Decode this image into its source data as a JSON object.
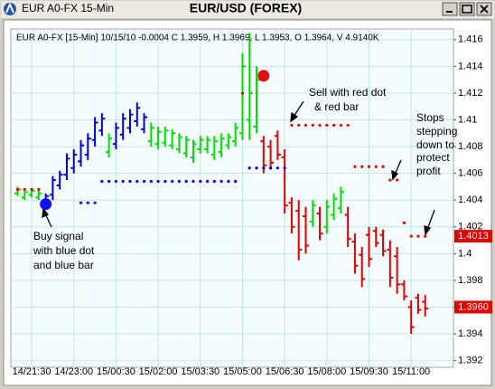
{
  "window": {
    "title": "EUR A0-FX 15-Min"
  },
  "chart_data": {
    "type": "ohlc",
    "title": "EUR/USD (FOREX)",
    "subtitle": "EUR A0-FX [15-Min] 10/15/10  -0.0004 C 1.3959, H 1.3969, L 1.3953, O 1.3964, V 4.9140K",
    "categories": [
      null,
      null,
      "14/21:30",
      null,
      null,
      null,
      null,
      null,
      "14/23:00",
      null,
      null,
      null,
      null,
      null,
      "15/00:30",
      null,
      null,
      null,
      null,
      null,
      "15/02:00",
      null,
      null,
      null,
      null,
      null,
      "15/03:30",
      null,
      null,
      null,
      null,
      null,
      "15/05:00",
      null,
      null,
      null,
      null,
      null,
      "15/06:30",
      null,
      null,
      null,
      null,
      null,
      "15/08:00",
      null,
      null,
      null,
      null,
      null,
      "15/09:30",
      null,
      null,
      null,
      null,
      null,
      "15/11:00",
      null,
      null
    ],
    "open": [
      1.4045,
      1.4042,
      1.4044,
      1.4042,
      1.4037,
      1.4044,
      1.4051,
      1.4059,
      1.4064,
      1.4069,
      1.4074,
      1.4085,
      1.4092,
      1.4076,
      1.4082,
      1.4089,
      1.4094,
      1.4099,
      1.4093,
      1.4084,
      1.4082,
      1.4083,
      1.4081,
      1.4078,
      1.4075,
      1.4072,
      1.4078,
      1.4078,
      1.4074,
      1.4076,
      1.4081,
      1.4084,
      1.409,
      1.41,
      1.4095,
      1.4084,
      1.408,
      1.4088,
      1.4072,
      1.4038,
      1.4032,
      1.4028,
      1.4024,
      1.403,
      1.402,
      1.4029,
      1.4034,
      1.4029,
      1.4009,
      1.3999,
      1.4014,
      1.4017,
      1.4014,
      1.4003,
      1.3998,
      1.3977,
      1.396,
      1.3967,
      1.3964
    ],
    "high": [
      1.405,
      1.4048,
      1.4049,
      1.4047,
      1.4045,
      1.4058,
      1.4062,
      1.4075,
      1.4078,
      1.4085,
      1.409,
      1.4102,
      1.4105,
      1.409,
      1.4098,
      1.4105,
      1.4108,
      1.4113,
      1.4105,
      1.4098,
      1.4095,
      1.4095,
      1.4093,
      1.409,
      1.4088,
      1.4085,
      1.4088,
      1.4088,
      1.4088,
      1.409,
      1.409,
      1.4098,
      1.415,
      1.4165,
      1.414,
      1.4088,
      1.4085,
      1.4092,
      1.4078,
      1.4042,
      1.404,
      1.4035,
      1.404,
      1.4035,
      1.404,
      1.4045,
      1.405,
      1.4035,
      1.4015,
      1.4005,
      1.402,
      1.402,
      1.4018,
      1.401,
      1.4005,
      1.398,
      1.3965,
      1.397,
      1.3969
    ],
    "low": [
      1.4043,
      1.404,
      1.4042,
      1.404,
      1.4035,
      1.404,
      1.4048,
      1.4055,
      1.406,
      1.4065,
      1.407,
      1.408,
      1.4088,
      1.4072,
      1.4078,
      1.4085,
      1.409,
      1.4095,
      1.409,
      1.408,
      1.4078,
      1.408,
      1.4078,
      1.4075,
      1.4072,
      1.4068,
      1.4075,
      1.4075,
      1.407,
      1.4072,
      1.4078,
      1.408,
      1.4085,
      1.4085,
      1.409,
      1.406,
      1.4063,
      1.407,
      1.403,
      1.4015,
      1.3995,
      1.4,
      1.402,
      1.401,
      1.4015,
      1.4025,
      1.403,
      1.4005,
      1.3985,
      1.3975,
      1.399,
      1.4005,
      1.3998,
      1.3975,
      1.397,
      1.3965,
      1.394,
      1.3955,
      1.3953
    ],
    "close": [
      1.4048,
      1.4046,
      1.4047,
      1.4045,
      1.4043,
      1.4055,
      1.4059,
      1.4071,
      1.4074,
      1.4081,
      1.4086,
      1.4098,
      1.4101,
      1.4086,
      1.4094,
      1.4101,
      1.4104,
      1.4109,
      1.4102,
      1.4094,
      1.4091,
      1.4092,
      1.409,
      1.4087,
      1.4085,
      1.4082,
      1.4085,
      1.4085,
      1.4084,
      1.4086,
      1.4087,
      1.4094,
      1.414,
      1.412,
      1.413,
      1.4066,
      1.4068,
      1.4074,
      1.4036,
      1.402,
      1.4003,
      1.4006,
      1.4036,
      1.4015,
      1.4035,
      1.4041,
      1.4046,
      1.4011,
      1.3991,
      1.3981,
      1.3996,
      1.4008,
      1.4002,
      1.3982,
      1.3977,
      1.3968,
      1.3945,
      1.3958,
      1.3959
    ],
    "bar_colors": [
      "#00e000",
      "#00e000",
      "#00e000",
      "#00e000",
      "#0000e0",
      "#0000e0",
      "#0000e0",
      "#0000e0",
      "#0000e0",
      "#0000e0",
      "#0000e0",
      "#0000e0",
      "#0000e0",
      "#00e000",
      "#0000e0",
      "#0000e0",
      "#0000e0",
      "#0000e0",
      "#0000e0",
      "#00e000",
      "#00e000",
      "#00e000",
      "#00e000",
      "#00e000",
      "#00e000",
      "#00e000",
      "#00e000",
      "#00e000",
      "#00e000",
      "#00e000",
      "#00e000",
      "#00e000",
      "#00e000",
      "#00e000",
      "#00e000",
      "#e00000",
      "#e00000",
      "#e00000",
      "#e00000",
      "#e00000",
      "#e00000",
      "#e00000",
      "#00e000",
      "#e00000",
      "#00e000",
      "#00e000",
      "#00e000",
      "#e00000",
      "#e00000",
      "#e00000",
      "#e00000",
      "#e00000",
      "#e00000",
      "#e00000",
      "#e00000",
      "#e00000",
      "#e00000",
      "#e00000",
      "#e00000"
    ],
    "stops": [
      {
        "color": "#e00000",
        "values": [
          1.4048,
          1.4048,
          1.4048,
          1.4048,
          null,
          null,
          null,
          null,
          null,
          null,
          null,
          null,
          null,
          null,
          null,
          null,
          null,
          null,
          null,
          null,
          null,
          null,
          null,
          null,
          null,
          null,
          null,
          null,
          null,
          null,
          null,
          null,
          1.412,
          null,
          null,
          null,
          null,
          null,
          null,
          1.4096,
          1.4096,
          1.4096,
          1.4096,
          1.4096,
          1.4096,
          1.4096,
          1.4096,
          1.4096,
          1.4065,
          1.4065,
          1.4065,
          1.4065,
          1.4065,
          1.4055,
          1.4055,
          1.4023,
          1.4013,
          1.4013,
          1.4013
        ]
      },
      {
        "color": "#0000e0",
        "values": [
          null,
          null,
          null,
          null,
          null,
          null,
          null,
          null,
          null,
          1.4038,
          1.4038,
          1.4038,
          1.4054,
          1.4054,
          1.4054,
          1.4054,
          1.4054,
          1.4054,
          1.4054,
          1.4054,
          1.4054,
          1.4054,
          1.4054,
          1.4054,
          1.4054,
          1.4054,
          1.4054,
          1.4054,
          1.4054,
          1.4054,
          1.4054,
          1.4054,
          null,
          1.4064,
          1.4064,
          1.4064,
          1.4064,
          1.4064,
          1.4064,
          null,
          null,
          null,
          null,
          null,
          null,
          null,
          null,
          null,
          null,
          null,
          null,
          null,
          null,
          null,
          null,
          null,
          null,
          null,
          null
        ]
      }
    ],
    "signals": [
      {
        "index": 4,
        "value": 1.4037,
        "color": "#1010f0"
      },
      {
        "index": 35,
        "value": 1.4133,
        "color": "#e01010"
      }
    ],
    "price_labels": [
      {
        "value": 1.4013,
        "label": "1.4013"
      },
      {
        "value": 1.396,
        "label": "1.3960"
      }
    ],
    "ylim": [
      1.3915,
      1.4168
    ],
    "yticks": [
      1.392,
      1.394,
      1.396,
      1.398,
      1.4,
      1.402,
      1.404,
      1.406,
      1.408,
      1.41,
      1.412,
      1.414,
      1.416
    ],
    "grid": true,
    "annotations": [
      {
        "lines": [
          "Buy signal",
          "with blue dot",
          "and blue bar"
        ]
      },
      {
        "lines": [
          "Sell with red dot",
          "& red bar"
        ]
      },
      {
        "lines": [
          "Stops",
          "stepping",
          "down to",
          "protect",
          "profit"
        ]
      }
    ]
  }
}
